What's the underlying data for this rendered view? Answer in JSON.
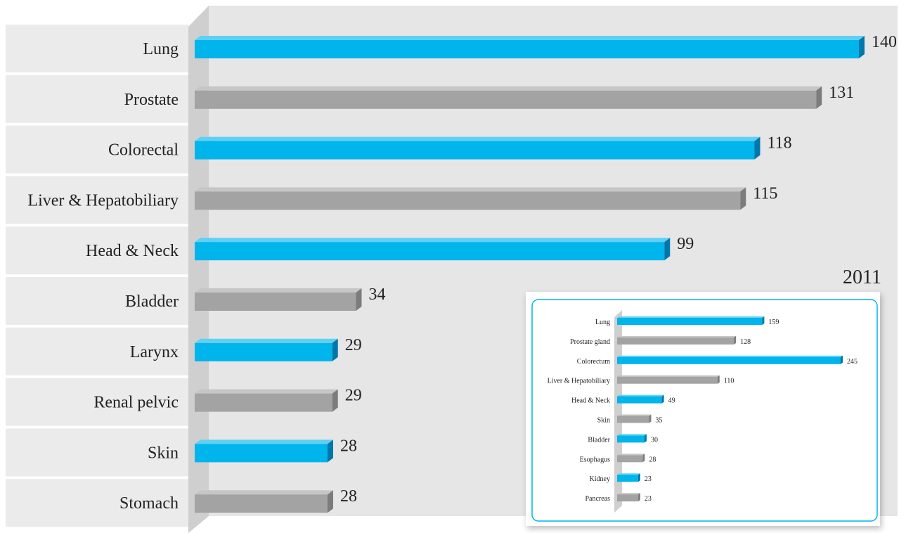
{
  "colors": {
    "accent": "#00b4ec",
    "accent_dark": "#0077aa",
    "accent_top": "#5fd0f2",
    "neutral": "#a3a3a3",
    "neutral_dark": "#7c7c7c",
    "neutral_top": "#c6c6c6",
    "panel": "#e6e6e7",
    "row": "#ebebec",
    "wall": "#cfcfd0",
    "text": "#222222"
  },
  "chart_data": [
    {
      "type": "bar",
      "orientation": "horizontal",
      "title": "",
      "categories": [
        "Lung",
        "Prostate",
        "Colorectal",
        "Liver & Hepatobiliary",
        "Head & Neck",
        "Bladder",
        "Larynx",
        "Renal pelvic",
        "Skin",
        "Stomach"
      ],
      "values": [
        140,
        131,
        118,
        115,
        99,
        34,
        29,
        29,
        28,
        28
      ],
      "value_labels": [
        "140",
        "131",
        "118",
        "115",
        "99",
        "34",
        "29",
        "29",
        "28",
        "28"
      ],
      "bar_colors": [
        "accent",
        "neutral",
        "accent",
        "neutral",
        "accent",
        "neutral",
        "accent",
        "neutral",
        "accent",
        "neutral"
      ],
      "grid": false,
      "legend": "none"
    },
    {
      "type": "bar",
      "orientation": "horizontal",
      "title": "2011",
      "categories": [
        "Lung",
        "Prostate gland",
        "Colorectum",
        "Liver & Hepatobiliary",
        "Head & Neck",
        "Skin",
        "Bladder",
        "Esophagus",
        "Kidney",
        "Pancreas"
      ],
      "values": [
        159,
        128,
        245,
        110,
        49,
        35,
        30,
        28,
        23,
        23
      ],
      "value_labels": [
        "159",
        "128",
        "245",
        "110",
        "49",
        "35",
        "30",
        "28",
        "23",
        "23"
      ],
      "bar_colors": [
        "accent",
        "neutral",
        "accent",
        "neutral",
        "accent",
        "neutral",
        "accent",
        "neutral",
        "accent",
        "neutral"
      ],
      "grid": false,
      "legend": "none"
    }
  ]
}
